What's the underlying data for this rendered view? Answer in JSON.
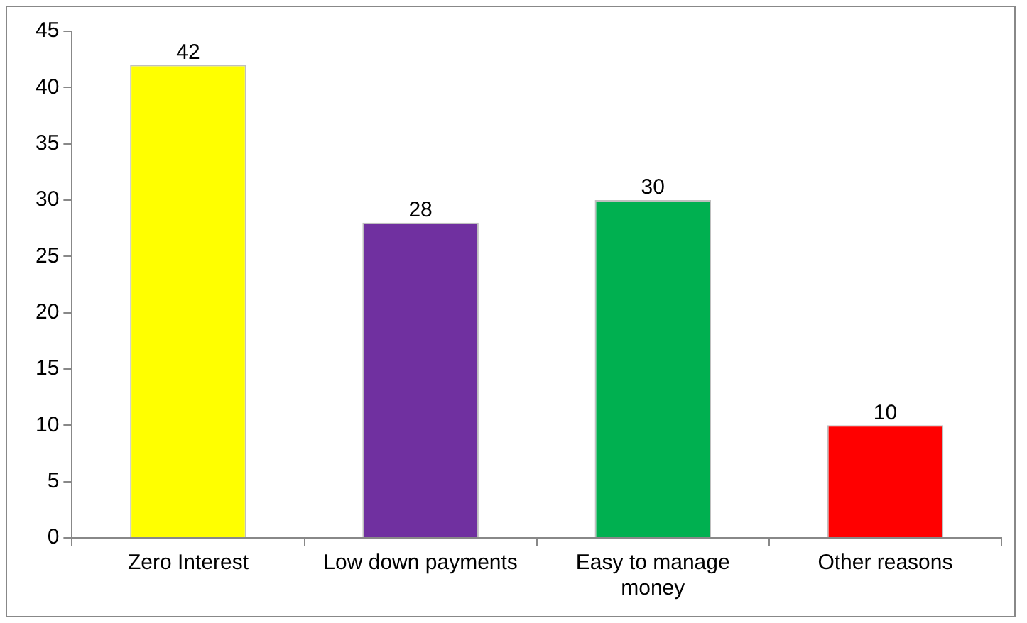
{
  "chart_data": {
    "type": "bar",
    "categories": [
      "Zero Interest",
      "Low down payments",
      "Easy to manage money",
      "Other reasons"
    ],
    "values": [
      42,
      28,
      30,
      10
    ],
    "colors": [
      "#ffff00",
      "#7030a0",
      "#00b050",
      "#ff0000"
    ],
    "ylim": [
      0,
      45
    ],
    "yticks": [
      0,
      5,
      10,
      15,
      20,
      25,
      30,
      35,
      40,
      45
    ],
    "data_labels": true,
    "legend": false
  }
}
